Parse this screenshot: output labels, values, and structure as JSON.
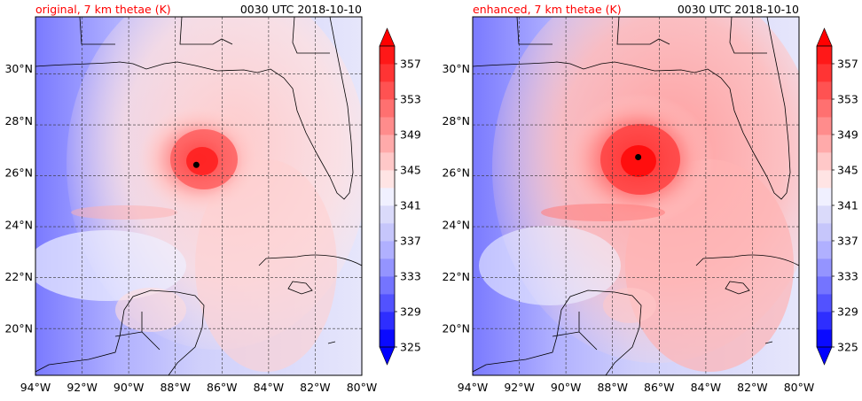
{
  "panels": [
    {
      "title_left": "original, 7 km thetae (K)",
      "title_right": "0030 UTC 2018-10-10",
      "storm_center": {
        "lon": -87.1,
        "lat": 26.3
      }
    },
    {
      "title_left": "enhanced, 7 km thetae (K)",
      "title_right": "0030 UTC 2018-10-10",
      "storm_center": {
        "lon": -86.9,
        "lat": 26.6
      }
    }
  ],
  "map": {
    "lon_range": [
      -94,
      -80
    ],
    "lat_range": [
      18.2,
      32
    ],
    "lon_ticks": [
      "94°W",
      "92°W",
      "90°W",
      "88°W",
      "86°W",
      "84°W",
      "82°W",
      "80°W"
    ],
    "lon_values": [
      -94,
      -92,
      -90,
      -88,
      -86,
      -84,
      -82,
      -80
    ],
    "lat_ticks": [
      "20°N",
      "22°N",
      "24°N",
      "26°N",
      "28°N",
      "30°N"
    ],
    "lat_values": [
      20,
      22,
      24,
      26,
      28,
      30
    ],
    "gridlines": true
  },
  "colorbar": {
    "tick_labels": [
      "325",
      "329",
      "333",
      "337",
      "341",
      "345",
      "349",
      "353",
      "357"
    ],
    "levels": [
      325,
      327,
      329,
      331,
      333,
      335,
      337,
      339,
      341,
      343,
      345,
      347,
      349,
      351,
      353,
      355,
      357,
      359
    ],
    "colors": [
      "#0a0aff",
      "#2e2eff",
      "#5252ff",
      "#7474ff",
      "#9494ff",
      "#b0b0ff",
      "#c6c6fb",
      "#dadafa",
      "#f0f0ff",
      "#ffe4e4",
      "#ffc8c8",
      "#ffaaaa",
      "#ff8c8c",
      "#ff7070",
      "#ff5252",
      "#ff3434",
      "#ff1818"
    ],
    "under_color": "#0000ff",
    "over_color": "#ff0000"
  }
}
